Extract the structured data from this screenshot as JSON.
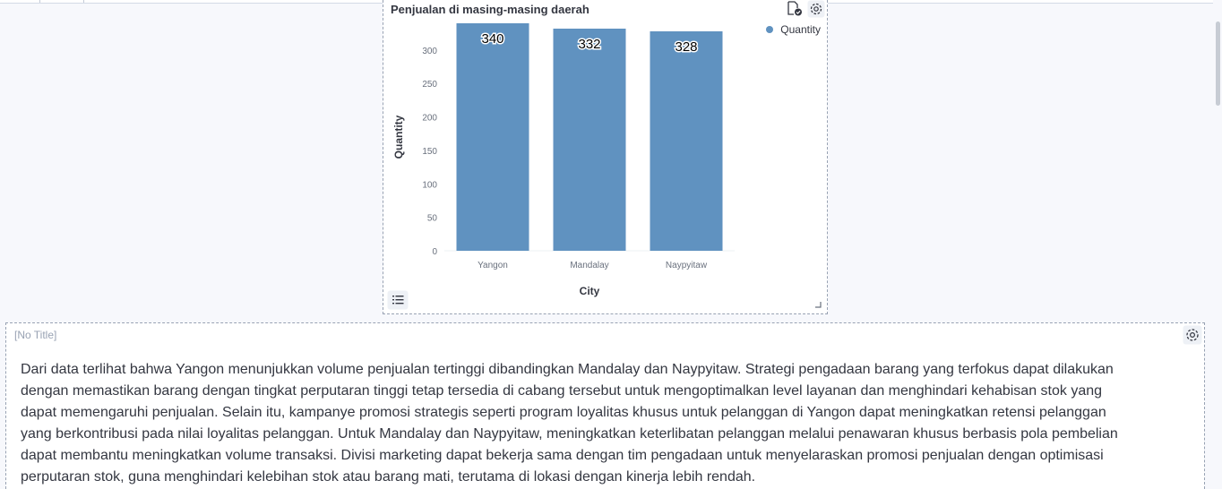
{
  "chart_panel": {
    "title": "Penjualan di masing-masing daerah",
    "icons": {
      "status": "document-check-icon",
      "settings": "gear-icon",
      "legend_toggle": "list-icon",
      "resize": "resize-handle-icon"
    },
    "legend": [
      {
        "label": "Quantity",
        "color": "#6092c0"
      }
    ]
  },
  "chart_data": {
    "type": "bar",
    "title": "Penjualan di masing-masing daerah",
    "categories": [
      "Yangon",
      "Mandalay",
      "Naypyitaw"
    ],
    "series": [
      {
        "name": "Quantity",
        "values": [
          340,
          332,
          328
        ],
        "color": "#6092c0"
      }
    ],
    "data_labels": [
      "340",
      "332",
      "328"
    ],
    "xlabel": "City",
    "ylabel": "Quantity",
    "ylim": [
      0,
      340
    ],
    "yticks": [
      0,
      50,
      100,
      150,
      200,
      250,
      300
    ],
    "ytick_labels": [
      "0",
      "50",
      "100",
      "150",
      "200",
      "250",
      "300"
    ],
    "grid": false,
    "legend_position": "top-right"
  },
  "text_panel": {
    "title": "[No Title]",
    "icons": {
      "settings": "gear-icon"
    },
    "lines": [
      "Dari data terlihat bahwa Yangon menunjukkan volume penjualan tertinggi dibandingkan Mandalay dan Naypyitaw. Strategi pengadaan barang yang terfokus dapat dilakukan",
      "dengan memastikan barang dengan tingkat perputaran tinggi tetap tersedia di cabang tersebut untuk mengoptimalkan level layanan dan menghindari kehabisan stok yang",
      "dapat memengaruhi penjualan. Selain itu, kampanye promosi strategis seperti program loyalitas khusus untuk pelanggan di Yangon dapat meningkatkan retensi pelanggan",
      "yang berkontribusi pada nilai loyalitas pelanggan. Untuk Mandalay dan Naypyitaw, meningkatkan keterlibatan pelanggan melalui penawaran khusus berbasis pola pembelian",
      "dapat membantu meningkatkan volume transaksi. Divisi marketing dapat bekerja sama dengan tim pengadaan untuk menyelaraskan promosi penjualan dengan optimisasi",
      "perputaran stok, guna menghindari kelebihan stok atau barang mati, terutama di lokasi dengan kinerja lebih rendah."
    ]
  }
}
